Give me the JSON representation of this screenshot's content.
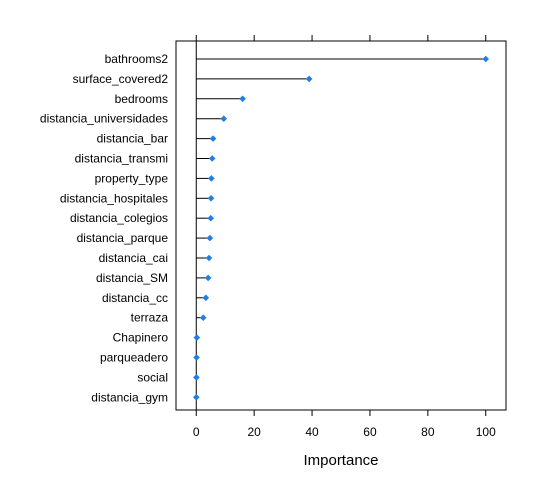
{
  "chart_data": {
    "type": "dotplot",
    "orientation": "horizontal",
    "title": "",
    "xlabel": "Importance",
    "ylabel": "",
    "xlim": [
      -7,
      107
    ],
    "xticks": [
      0,
      20,
      40,
      60,
      80,
      100
    ],
    "xtick_labels": [
      "0",
      "20",
      "40",
      "60",
      "80",
      "100"
    ],
    "grid": false,
    "legend": "none",
    "point_color": "#1f7fe6",
    "line_color": "#000000",
    "categories": [
      "bathrooms2",
      "surface_covered2",
      "bedrooms",
      "distancia_universidades",
      "distancia_bar",
      "distancia_transmi",
      "property_type",
      "distancia_hospitales",
      "distancia_colegios",
      "distancia_parque",
      "distancia_cai",
      "distancia_SM",
      "distancia_cc",
      "terraza",
      "Chapinero",
      "parqueadero",
      "social",
      "distancia_gym"
    ],
    "values": [
      100,
      39,
      16,
      9.5,
      5.8,
      5.5,
      5.2,
      5.1,
      5.0,
      4.7,
      4.4,
      4.1,
      3.3,
      2.4,
      0.2,
      0.1,
      0.05,
      0
    ]
  }
}
